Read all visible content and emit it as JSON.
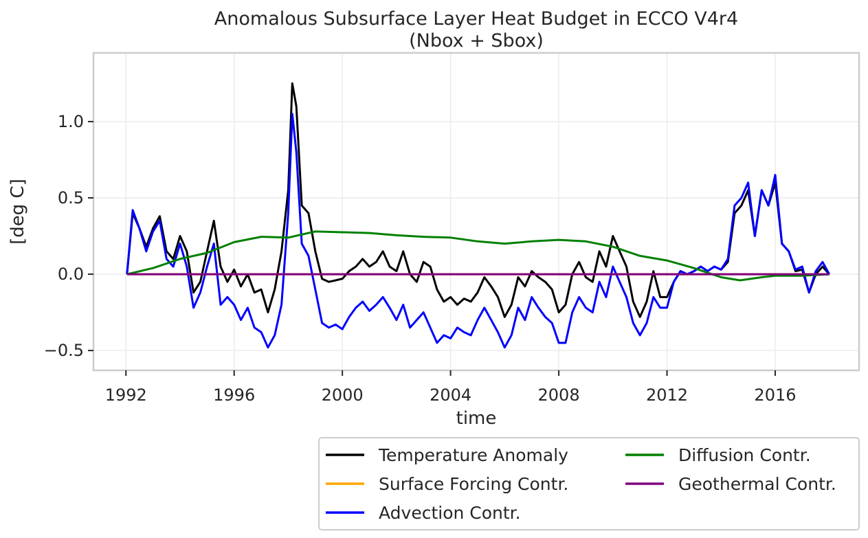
{
  "chart_data": {
    "type": "line",
    "title": "Anomalous Subsurface Layer Heat Budget in ECCO V4r4",
    "subtitle": "(Nbox + Sbox)",
    "xlabel": "time",
    "ylabel": "[deg C]",
    "xlim": [
      1990.8,
      2019.1
    ],
    "ylim": [
      -0.63,
      1.45
    ],
    "xticks": [
      1992,
      1996,
      2000,
      2004,
      2008,
      2012,
      2016
    ],
    "xtick_labels": [
      "1992",
      "1996",
      "2000",
      "2004",
      "2008",
      "2012",
      "2016"
    ],
    "yticks": [
      -0.5,
      0.0,
      0.5,
      1.0
    ],
    "ytick_labels": [
      "−0.5",
      "0.0",
      "0.5",
      "1.0"
    ],
    "grid": true,
    "legend_position": "below-right",
    "legend_columns": 2,
    "series": [
      {
        "name": "Temperature Anomaly",
        "color": "#000000",
        "x": [
          1992.04,
          1992.25,
          1992.5,
          1992.75,
          1993.0,
          1993.25,
          1993.5,
          1993.75,
          1994.0,
          1994.25,
          1994.5,
          1994.75,
          1995.0,
          1995.25,
          1995.5,
          1995.75,
          1996.0,
          1996.25,
          1996.5,
          1996.75,
          1997.0,
          1997.25,
          1997.5,
          1997.75,
          1998.0,
          1998.15,
          1998.3,
          1998.5,
          1998.75,
          1999.0,
          1999.25,
          1999.5,
          1999.75,
          2000.0,
          2000.25,
          2000.5,
          2000.75,
          2001.0,
          2001.25,
          2001.5,
          2001.75,
          2002.0,
          2002.25,
          2002.5,
          2002.75,
          2003.0,
          2003.25,
          2003.5,
          2003.75,
          2004.0,
          2004.25,
          2004.5,
          2004.75,
          2005.0,
          2005.25,
          2005.5,
          2005.75,
          2006.0,
          2006.25,
          2006.5,
          2006.75,
          2007.0,
          2007.25,
          2007.5,
          2007.75,
          2008.0,
          2008.25,
          2008.5,
          2008.75,
          2009.0,
          2009.25,
          2009.5,
          2009.75,
          2010.0,
          2010.25,
          2010.5,
          2010.75,
          2011.0,
          2011.25,
          2011.5,
          2011.75,
          2012.0,
          2012.25,
          2012.5,
          2012.75,
          2013.0,
          2013.25,
          2013.5,
          2013.75,
          2014.0,
          2014.25,
          2014.5,
          2014.75,
          2015.0,
          2015.25,
          2015.5,
          2015.75,
          2016.0,
          2016.25,
          2016.5,
          2016.75,
          2017.0,
          2017.25,
          2017.5,
          2017.75,
          2018.0
        ],
        "y": [
          0.0,
          0.4,
          0.3,
          0.18,
          0.3,
          0.38,
          0.15,
          0.1,
          0.25,
          0.15,
          -0.12,
          -0.05,
          0.15,
          0.35,
          0.05,
          -0.05,
          0.03,
          -0.08,
          0.0,
          -0.12,
          -0.1,
          -0.25,
          -0.1,
          0.15,
          0.55,
          1.25,
          1.1,
          0.45,
          0.4,
          0.15,
          -0.03,
          -0.05,
          -0.04,
          -0.03,
          0.02,
          0.05,
          0.1,
          0.05,
          0.08,
          0.15,
          0.05,
          0.02,
          0.15,
          0.0,
          -0.05,
          0.08,
          0.05,
          -0.1,
          -0.18,
          -0.15,
          -0.2,
          -0.16,
          -0.18,
          -0.12,
          -0.02,
          -0.08,
          -0.15,
          -0.28,
          -0.2,
          -0.02,
          -0.08,
          0.02,
          -0.02,
          -0.05,
          -0.1,
          -0.25,
          -0.2,
          0.0,
          0.08,
          -0.02,
          -0.05,
          0.15,
          0.05,
          0.25,
          0.15,
          0.05,
          -0.18,
          -0.28,
          -0.18,
          0.02,
          -0.15,
          -0.15,
          -0.05,
          0.02,
          0.0,
          0.02,
          0.05,
          0.02,
          0.05,
          0.03,
          0.08,
          0.4,
          0.45,
          0.55,
          0.25,
          0.55,
          0.45,
          0.6,
          0.2,
          0.15,
          0.02,
          0.03,
          -0.12,
          0.0,
          0.05,
          0.0
        ],
        "width": 3
      },
      {
        "name": "Surface Forcing Contr.",
        "color": "#ffa500",
        "x": [
          1992.04,
          2018.0
        ],
        "y": [
          0.0,
          0.0
        ],
        "width": 3
      },
      {
        "name": "Advection Contr.",
        "color": "#0000ff",
        "x": [
          1992.04,
          1992.25,
          1992.5,
          1992.75,
          1993.0,
          1993.25,
          1993.5,
          1993.75,
          1994.0,
          1994.25,
          1994.5,
          1994.75,
          1995.0,
          1995.25,
          1995.5,
          1995.75,
          1996.0,
          1996.25,
          1996.5,
          1996.75,
          1997.0,
          1997.25,
          1997.5,
          1997.75,
          1998.0,
          1998.15,
          1998.3,
          1998.5,
          1998.75,
          1999.0,
          1999.25,
          1999.5,
          1999.75,
          2000.0,
          2000.25,
          2000.5,
          2000.75,
          2001.0,
          2001.25,
          2001.5,
          2001.75,
          2002.0,
          2002.25,
          2002.5,
          2002.75,
          2003.0,
          2003.25,
          2003.5,
          2003.75,
          2004.0,
          2004.25,
          2004.5,
          2004.75,
          2005.0,
          2005.25,
          2005.5,
          2005.75,
          2006.0,
          2006.25,
          2006.5,
          2006.75,
          2007.0,
          2007.25,
          2007.5,
          2007.75,
          2008.0,
          2008.25,
          2008.5,
          2008.75,
          2009.0,
          2009.25,
          2009.5,
          2009.75,
          2010.0,
          2010.25,
          2010.5,
          2010.75,
          2011.0,
          2011.25,
          2011.5,
          2011.75,
          2012.0,
          2012.25,
          2012.5,
          2012.75,
          2013.0,
          2013.25,
          2013.5,
          2013.75,
          2014.0,
          2014.25,
          2014.5,
          2014.75,
          2015.0,
          2015.25,
          2015.5,
          2015.75,
          2016.0,
          2016.25,
          2016.5,
          2016.75,
          2017.0,
          2017.25,
          2017.5,
          2017.75,
          2018.0
        ],
        "y": [
          0.0,
          0.42,
          0.3,
          0.15,
          0.28,
          0.35,
          0.1,
          0.05,
          0.2,
          0.05,
          -0.22,
          -0.12,
          0.05,
          0.2,
          -0.2,
          -0.15,
          -0.2,
          -0.3,
          -0.22,
          -0.35,
          -0.38,
          -0.48,
          -0.4,
          -0.2,
          0.4,
          1.05,
          0.8,
          0.2,
          0.12,
          -0.1,
          -0.32,
          -0.35,
          -0.33,
          -0.36,
          -0.28,
          -0.22,
          -0.18,
          -0.24,
          -0.2,
          -0.15,
          -0.22,
          -0.3,
          -0.2,
          -0.35,
          -0.3,
          -0.25,
          -0.35,
          -0.45,
          -0.4,
          -0.42,
          -0.35,
          -0.38,
          -0.4,
          -0.3,
          -0.22,
          -0.3,
          -0.38,
          -0.48,
          -0.4,
          -0.22,
          -0.3,
          -0.15,
          -0.22,
          -0.28,
          -0.32,
          -0.45,
          -0.45,
          -0.25,
          -0.15,
          -0.22,
          -0.25,
          -0.05,
          -0.15,
          0.05,
          -0.05,
          -0.15,
          -0.32,
          -0.4,
          -0.32,
          -0.15,
          -0.22,
          -0.22,
          -0.05,
          0.02,
          0.0,
          0.02,
          0.05,
          0.02,
          0.05,
          0.03,
          0.1,
          0.45,
          0.5,
          0.6,
          0.25,
          0.55,
          0.45,
          0.65,
          0.2,
          0.15,
          0.03,
          0.05,
          -0.12,
          0.02,
          0.08,
          0.0
        ],
        "width": 3
      },
      {
        "name": "Diffusion Contr.",
        "color": "#008000",
        "x": [
          1992.04,
          1993.0,
          1994.0,
          1995.0,
          1996.0,
          1997.0,
          1998.0,
          1999.0,
          2000.0,
          2001.0,
          2002.0,
          2003.0,
          2004.0,
          2005.0,
          2006.0,
          2007.0,
          2008.0,
          2009.0,
          2010.0,
          2011.0,
          2012.0,
          2013.0,
          2014.0,
          2014.7,
          2015.5,
          2016.0,
          2017.0,
          2018.0
        ],
        "y": [
          0.0,
          0.04,
          0.1,
          0.14,
          0.21,
          0.245,
          0.24,
          0.28,
          0.275,
          0.27,
          0.255,
          0.245,
          0.24,
          0.215,
          0.2,
          0.215,
          0.225,
          0.215,
          0.18,
          0.12,
          0.09,
          0.04,
          -0.02,
          -0.04,
          -0.02,
          -0.01,
          -0.01,
          0.0
        ],
        "width": 3
      },
      {
        "name": "Geothermal Contr.",
        "color": "#800080",
        "x": [
          1992.04,
          2018.0
        ],
        "y": [
          0.0,
          0.0
        ],
        "width": 3
      }
    ]
  }
}
